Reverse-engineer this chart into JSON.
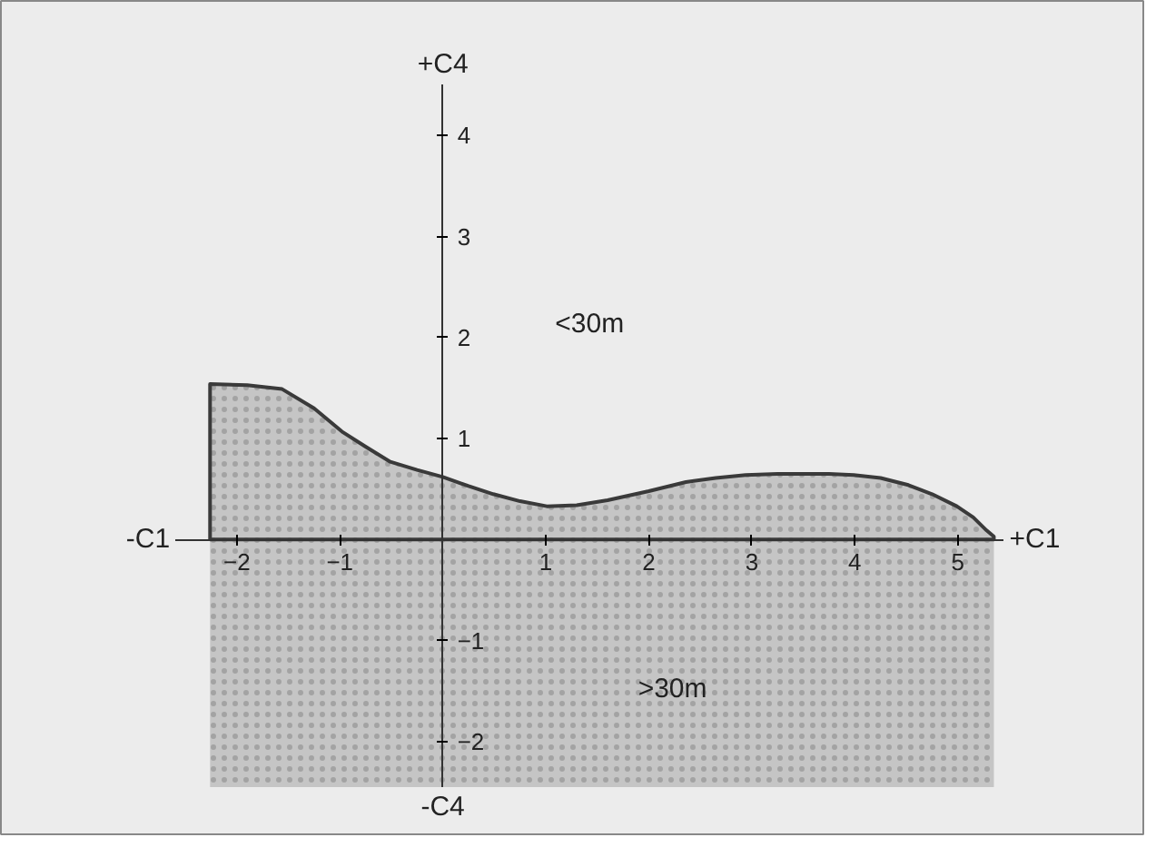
{
  "chart_data": {
    "type": "area",
    "xlabel": "+C1",
    "ylabel": "+C4",
    "x": [
      -2.26,
      -1.9,
      -1.56,
      -1.25,
      -0.98,
      -0.75,
      -0.51,
      -0.25,
      0,
      0.25,
      0.49,
      0.75,
      1.01,
      1.3,
      1.6,
      2.0,
      2.36,
      2.65,
      2.94,
      3.25,
      3.53,
      3.75,
      3.99,
      4.25,
      4.52,
      4.75,
      4.99,
      5.15,
      5.28,
      5.35
    ],
    "series": [
      {
        "color": "#3a3a3a",
        "values": [
          1.54,
          1.53,
          1.49,
          1.3,
          1.07,
          0.92,
          0.77,
          0.69,
          0.62,
          0.53,
          0.45,
          0.38,
          0.33,
          0.34,
          0.39,
          0.48,
          0.57,
          0.61,
          0.64,
          0.65,
          0.65,
          0.65,
          0.64,
          0.61,
          0.54,
          0.45,
          0.33,
          0.22,
          0.09,
          0.03
        ]
      }
    ],
    "xlim": [
      -2.6,
      5.45
    ],
    "ylim": [
      -2.45,
      4.5
    ],
    "xticks": [
      -2,
      -1,
      1,
      2,
      3,
      4,
      5
    ],
    "yticks": [
      -2,
      -1,
      1,
      2,
      3,
      4
    ],
    "grid": false,
    "bands": [
      {
        "axis": "y",
        "from": -2.45,
        "to": 0,
        "color": "#3a3a3a"
      }
    ],
    "annotations": [
      "-C1",
      "-C4",
      "<30m",
      ">30m"
    ]
  }
}
